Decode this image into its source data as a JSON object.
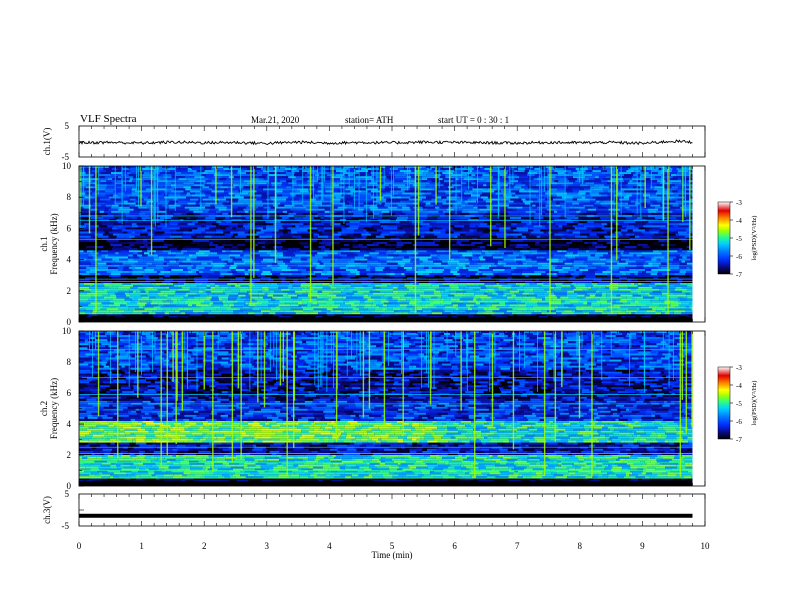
{
  "header": {
    "title": "VLF  Spectra",
    "date": "Mar.21, 2020",
    "station": "station= ATH",
    "start_ut": "start  UT  =    0  : 30 : 1"
  },
  "chart_data": [
    {
      "type": "line",
      "panel": "ch1-waveform",
      "ylabel": "ch.1(V)",
      "ylim": [
        -5,
        5
      ],
      "yticks": [
        "5",
        "-5"
      ],
      "xlim": [
        0,
        10
      ],
      "x": [
        0,
        0.5,
        1,
        1.5,
        2,
        2.5,
        3,
        3.5,
        4,
        4.5,
        5,
        5.5,
        6,
        6.5,
        7,
        7.5,
        8,
        8.5,
        9,
        9.5,
        9.8
      ],
      "values": [
        -0.4,
        -0.3,
        -0.5,
        -0.2,
        -0.4,
        -0.3,
        -0.6,
        -0.2,
        -0.5,
        -0.3,
        -0.4,
        -0.2,
        -0.3,
        -0.4,
        -0.5,
        -0.3,
        -0.4,
        -0.3,
        -0.6,
        0.1,
        -0.2
      ]
    },
    {
      "type": "heatmap",
      "panel": "ch1-spectrogram",
      "ylabel": "ch.1\nFrequency  (kHz)",
      "ylim": [
        0,
        10
      ],
      "yticks": [
        "10",
        "8",
        "6",
        "4",
        "2",
        "0"
      ],
      "xlim": [
        0,
        9.8
      ],
      "colorbar_label": "log(PSD)(V²/Hz)",
      "colorbar_ticks": [
        "-3",
        "-4",
        "-5",
        "-6",
        "-7"
      ],
      "bands_khz": [
        {
          "from": 0,
          "to": 0.5,
          "level": -7
        },
        {
          "from": 0.5,
          "to": 2.5,
          "level": -5.3
        },
        {
          "from": 2.5,
          "to": 3.0,
          "level": -6.8
        },
        {
          "from": 3.0,
          "to": 4.6,
          "level": -5.9
        },
        {
          "from": 4.6,
          "to": 5.4,
          "level": -6.9
        },
        {
          "from": 5.4,
          "to": 7.0,
          "level": -6.4
        },
        {
          "from": 7.0,
          "to": 10,
          "level": -6.0
        }
      ]
    },
    {
      "type": "heatmap",
      "panel": "ch2-spectrogram",
      "ylabel": "ch.2\nFrequency  (kHz)",
      "ylim": [
        0,
        10
      ],
      "yticks": [
        "10",
        "8",
        "6",
        "4",
        "2",
        "0"
      ],
      "xlim": [
        0,
        9.8
      ],
      "colorbar_label": "log(PSD)(V²/Hz)",
      "colorbar_ticks": [
        "-3",
        "-4",
        "-5",
        "-6",
        "-7"
      ],
      "bands_khz": [
        {
          "from": 0,
          "to": 0.5,
          "level": -7
        },
        {
          "from": 0.5,
          "to": 2.0,
          "level": -5.2
        },
        {
          "from": 2.0,
          "to": 2.8,
          "level": -6.5
        },
        {
          "from": 2.8,
          "to": 4.2,
          "level": -4.8
        },
        {
          "from": 4.2,
          "to": 5.5,
          "level": -6.2
        },
        {
          "from": 5.5,
          "to": 7.5,
          "level": -6.5
        },
        {
          "from": 7.5,
          "to": 10,
          "level": -6.1
        }
      ]
    },
    {
      "type": "line",
      "panel": "ch3-waveform",
      "ylabel": "ch.3(V)",
      "ylim": [
        -5,
        5
      ],
      "yticks": [
        "5",
        "-5"
      ],
      "xlim": [
        0,
        10
      ],
      "x": [
        0,
        9.8
      ],
      "values": [
        -1.8,
        -1.8
      ]
    }
  ],
  "xaxis": {
    "label": "Time  (min)",
    "ticks": [
      "0",
      "1",
      "2",
      "3",
      "4",
      "5",
      "6",
      "7",
      "8",
      "9",
      "10"
    ]
  },
  "colors": {
    "colormap": [
      "#000000",
      "#0a0a8c",
      "#0030ff",
      "#0080ff",
      "#00d0ff",
      "#30ff80",
      "#a0ff00",
      "#ffff00",
      "#ff8000",
      "#e00000",
      "#ffffff"
    ]
  }
}
